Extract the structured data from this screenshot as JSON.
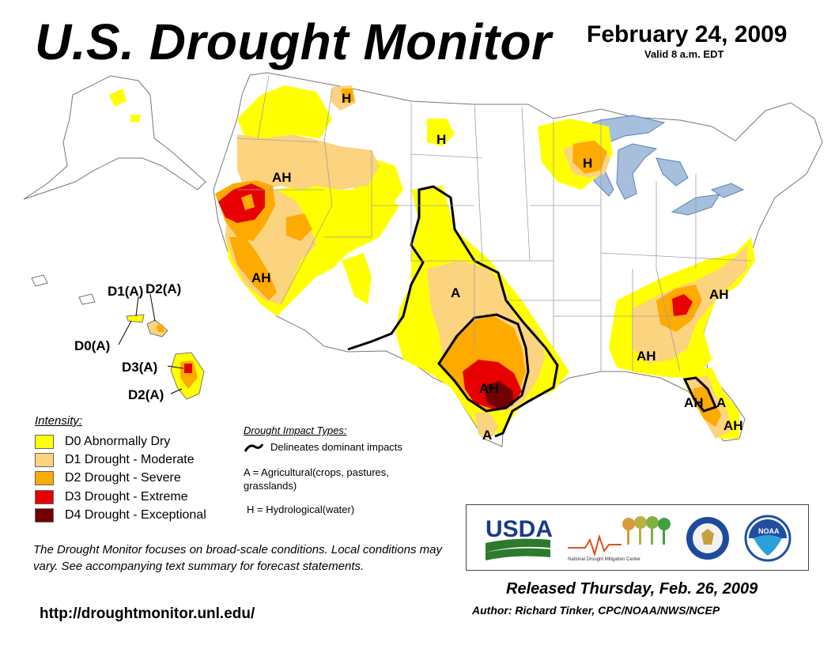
{
  "header": {
    "title": "U.S. Drought Monitor",
    "date": "February 24, 2009",
    "valid": "Valid 8 a.m. EDT"
  },
  "colors": {
    "d0": "#ffff00",
    "d1": "#fcd37f",
    "d2": "#ffaa00",
    "d3": "#e60000",
    "d4": "#730000",
    "water": "#a5bfdd",
    "state_border": "#a0a0a0"
  },
  "map": {
    "labels": [
      "AH",
      "AH",
      "A",
      "AH",
      "AH",
      "AH",
      "AH",
      "A",
      "A",
      "AH"
    ],
    "hydro_labels": [
      "H",
      "H",
      "H"
    ],
    "hawaii_labels": [
      "D1(A)",
      "D2(A)",
      "D0(A)",
      "D3(A)",
      "D2(A)"
    ]
  },
  "legend": {
    "intensity_title": "Intensity:",
    "items": [
      {
        "code": "D0",
        "label": "D0 Abnormally Dry",
        "color": "#ffff00"
      },
      {
        "code": "D1",
        "label": "D1 Drought - Moderate",
        "color": "#fcd37f"
      },
      {
        "code": "D2",
        "label": "D2 Drought - Severe",
        "color": "#ffaa00"
      },
      {
        "code": "D3",
        "label": "D3 Drought - Extreme",
        "color": "#e60000"
      },
      {
        "code": "D4",
        "label": "D4 Drought - Exceptional",
        "color": "#730000"
      }
    ]
  },
  "impacts": {
    "title": "Drought Impact Types:",
    "delineates": "Delineates dominant impacts",
    "agricultural": "A = Agricultural(crops, pastures, grasslands)",
    "hydrological": "H = Hydrological(water)"
  },
  "footer": {
    "note": "The Drought Monitor focuses on broad-scale conditions. Local conditions may vary. See accompanying text summary for forecast statements.",
    "url": "http://droughtmonitor.unl.edu/",
    "released": "Released Thursday, Feb. 26, 2009",
    "author": "Author: Richard Tinker, CPC/NOAA/NWS/NCEP"
  },
  "logos": {
    "usda": "USDA",
    "ndmc": "National Drought Mitigation Center",
    "noaa": "NOAA"
  }
}
